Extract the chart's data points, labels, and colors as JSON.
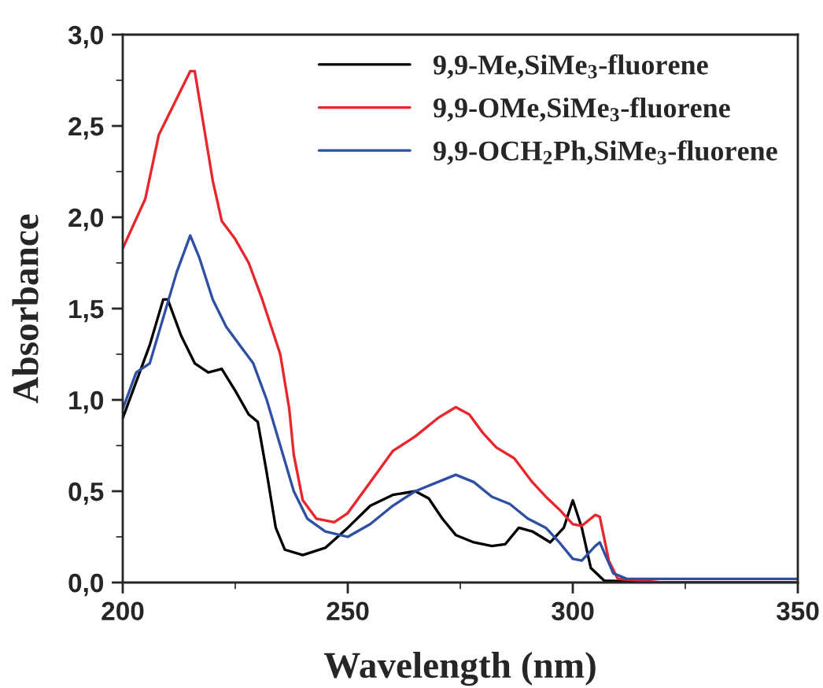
{
  "chart_data": {
    "type": "line",
    "xlabel": "Wavelength (nm)",
    "ylabel": "Absorbance",
    "xlim": [
      200,
      350
    ],
    "xticks": [
      200,
      250,
      300,
      350
    ],
    "ylim": [
      0,
      3
    ],
    "yticks": [
      {
        "value": 0,
        "label": "0,0"
      },
      {
        "value": 0.5,
        "label": "0,5"
      },
      {
        "value": 1,
        "label": "1,0"
      },
      {
        "value": 1.5,
        "label": "1,5"
      },
      {
        "value": 2,
        "label": "2,0"
      },
      {
        "value": 2.5,
        "label": "2,5"
      },
      {
        "value": 3,
        "label": "3,0"
      }
    ],
    "legend": "top right",
    "grid": false,
    "series": [
      {
        "name": "9,9-Me,SiMe$_{3}$-fluorene",
        "color": "#000000",
        "x": [
          200,
          203,
          206,
          209,
          210,
          213,
          216,
          219,
          222,
          225,
          228,
          230,
          232,
          234,
          236,
          240,
          245,
          250,
          255,
          260,
          265,
          268,
          271,
          274,
          278,
          282,
          285,
          288,
          291,
          295,
          298,
          300,
          302,
          304,
          307,
          320,
          350
        ],
        "values": [
          0.9,
          1.1,
          1.3,
          1.55,
          1.55,
          1.35,
          1.2,
          1.15,
          1.17,
          1.05,
          0.92,
          0.88,
          0.6,
          0.3,
          0.18,
          0.15,
          0.19,
          0.3,
          0.42,
          0.48,
          0.5,
          0.46,
          0.35,
          0.26,
          0.22,
          0.2,
          0.21,
          0.3,
          0.28,
          0.22,
          0.3,
          0.45,
          0.3,
          0.08,
          0.01,
          0,
          0
        ]
      },
      {
        "name": "9,9-OMe,SiMe$_{3}$-fluorene",
        "color": "#e8262c",
        "x": [
          200,
          205,
          208,
          211,
          213,
          215,
          216,
          218,
          220,
          222,
          225,
          228,
          231,
          235,
          237,
          238,
          240,
          243,
          247,
          250,
          255,
          260,
          265,
          270,
          274,
          277,
          280,
          283,
          287,
          291,
          294,
          297,
          300,
          302,
          305,
          306,
          308,
          310,
          320,
          350
        ],
        "values": [
          1.83,
          2.1,
          2.45,
          2.6,
          2.7,
          2.8,
          2.8,
          2.5,
          2.2,
          1.98,
          1.88,
          1.75,
          1.55,
          1.25,
          0.95,
          0.7,
          0.45,
          0.35,
          0.33,
          0.38,
          0.55,
          0.72,
          0.8,
          0.9,
          0.96,
          0.92,
          0.82,
          0.74,
          0.68,
          0.55,
          0.47,
          0.4,
          0.32,
          0.31,
          0.37,
          0.36,
          0.12,
          0.02,
          0,
          0
        ]
      },
      {
        "name": "9,9-OCH$_{2}$Ph,SiMe$_{3}$-fluorene",
        "color": "#2f4fa2",
        "x": [
          200,
          203,
          206,
          209,
          212,
          215,
          217,
          220,
          223,
          226,
          229,
          232,
          235,
          238,
          241,
          245,
          250,
          255,
          260,
          265,
          270,
          274,
          278,
          282,
          286,
          290,
          294,
          297,
          300,
          302,
          305,
          306,
          309,
          312,
          350
        ],
        "values": [
          0.95,
          1.15,
          1.2,
          1.45,
          1.7,
          1.9,
          1.78,
          1.55,
          1.4,
          1.3,
          1.2,
          1.0,
          0.75,
          0.5,
          0.35,
          0.28,
          0.25,
          0.32,
          0.42,
          0.5,
          0.55,
          0.59,
          0.55,
          0.47,
          0.43,
          0.35,
          0.3,
          0.22,
          0.13,
          0.12,
          0.2,
          0.22,
          0.05,
          0.02,
          0.02
        ]
      }
    ]
  }
}
